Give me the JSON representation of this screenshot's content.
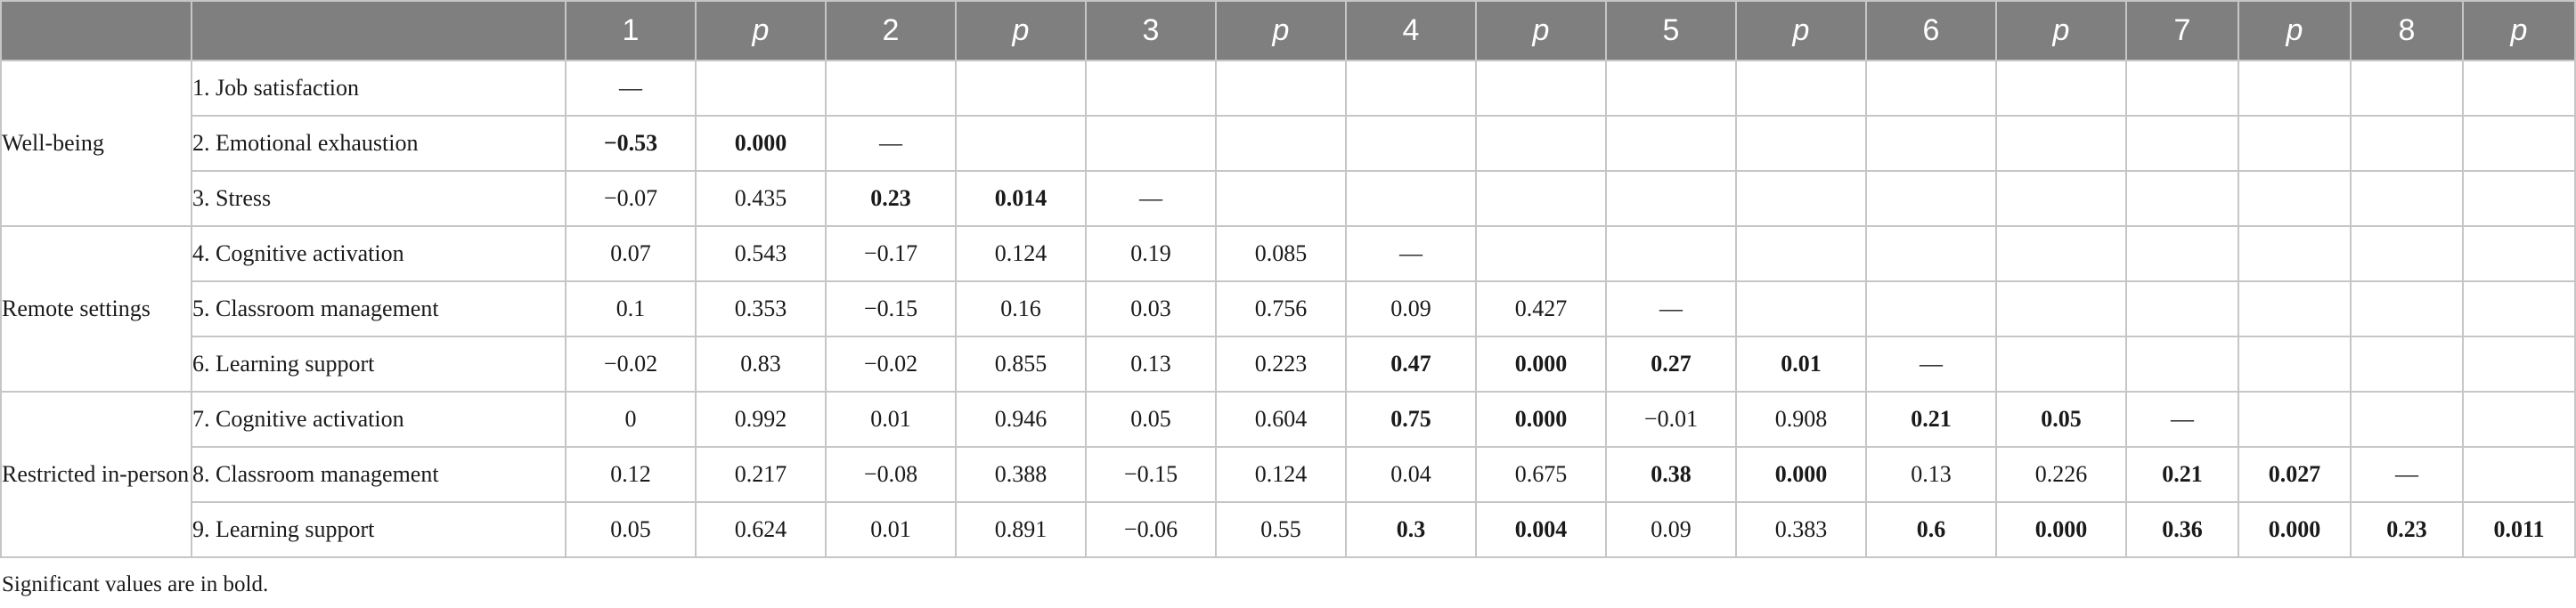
{
  "table": {
    "header": [
      "",
      "",
      "1",
      "p",
      "2",
      "p",
      "3",
      "p",
      "4",
      "p",
      "5",
      "p",
      "6",
      "p",
      "7",
      "p",
      "8",
      "p"
    ],
    "groups": [
      {
        "label": "Well-being",
        "rowspan": 3
      },
      {
        "label": "Remote settings",
        "rowspan": 3
      },
      {
        "label": "Restricted in-person settings",
        "rowspan": 3
      }
    ],
    "rows": [
      {
        "group": 0,
        "label": "1.  Job satisfaction",
        "cells": [
          {
            "v": "—"
          },
          {
            "v": ""
          },
          {
            "v": ""
          },
          {
            "v": ""
          },
          {
            "v": ""
          },
          {
            "v": ""
          },
          {
            "v": ""
          },
          {
            "v": ""
          },
          {
            "v": ""
          },
          {
            "v": ""
          },
          {
            "v": ""
          },
          {
            "v": ""
          },
          {
            "v": ""
          },
          {
            "v": ""
          },
          {
            "v": ""
          },
          {
            "v": ""
          }
        ]
      },
      {
        "group": 0,
        "label": "2.  Emotional exhaustion",
        "cells": [
          {
            "v": "−0.53",
            "b": true
          },
          {
            "v": "0.000",
            "b": true
          },
          {
            "v": "—"
          },
          {
            "v": ""
          },
          {
            "v": ""
          },
          {
            "v": ""
          },
          {
            "v": ""
          },
          {
            "v": ""
          },
          {
            "v": ""
          },
          {
            "v": ""
          },
          {
            "v": ""
          },
          {
            "v": ""
          },
          {
            "v": ""
          },
          {
            "v": ""
          },
          {
            "v": ""
          },
          {
            "v": ""
          }
        ]
      },
      {
        "group": 0,
        "label": "3.  Stress",
        "cells": [
          {
            "v": "−0.07"
          },
          {
            "v": "0.435"
          },
          {
            "v": "0.23",
            "b": true
          },
          {
            "v": "0.014",
            "b": true
          },
          {
            "v": "—"
          },
          {
            "v": ""
          },
          {
            "v": ""
          },
          {
            "v": ""
          },
          {
            "v": ""
          },
          {
            "v": ""
          },
          {
            "v": ""
          },
          {
            "v": ""
          },
          {
            "v": ""
          },
          {
            "v": ""
          },
          {
            "v": ""
          },
          {
            "v": ""
          }
        ]
      },
      {
        "group": 1,
        "label": "4.  Cognitive activation",
        "cells": [
          {
            "v": "0.07"
          },
          {
            "v": "0.543"
          },
          {
            "v": "−0.17"
          },
          {
            "v": "0.124"
          },
          {
            "v": "0.19"
          },
          {
            "v": "0.085"
          },
          {
            "v": "—"
          },
          {
            "v": ""
          },
          {
            "v": ""
          },
          {
            "v": ""
          },
          {
            "v": ""
          },
          {
            "v": ""
          },
          {
            "v": ""
          },
          {
            "v": ""
          },
          {
            "v": ""
          },
          {
            "v": ""
          }
        ]
      },
      {
        "group": 1,
        "label": "5.  Classroom management",
        "cells": [
          {
            "v": "0.1"
          },
          {
            "v": "0.353"
          },
          {
            "v": "−0.15"
          },
          {
            "v": "0.16"
          },
          {
            "v": "0.03"
          },
          {
            "v": "0.756"
          },
          {
            "v": "0.09"
          },
          {
            "v": "0.427"
          },
          {
            "v": "—"
          },
          {
            "v": ""
          },
          {
            "v": ""
          },
          {
            "v": ""
          },
          {
            "v": ""
          },
          {
            "v": ""
          },
          {
            "v": ""
          },
          {
            "v": ""
          }
        ]
      },
      {
        "group": 1,
        "label": "6.  Learning support",
        "cells": [
          {
            "v": "−0.02"
          },
          {
            "v": "0.83"
          },
          {
            "v": "−0.02"
          },
          {
            "v": "0.855"
          },
          {
            "v": "0.13"
          },
          {
            "v": "0.223"
          },
          {
            "v": "0.47",
            "b": true
          },
          {
            "v": "0.000",
            "b": true
          },
          {
            "v": "0.27",
            "b": true
          },
          {
            "v": "0.01",
            "b": true
          },
          {
            "v": "—"
          },
          {
            "v": ""
          },
          {
            "v": ""
          },
          {
            "v": ""
          },
          {
            "v": ""
          },
          {
            "v": ""
          }
        ]
      },
      {
        "group": 2,
        "label": "7.  Cognitive activation",
        "cells": [
          {
            "v": "0"
          },
          {
            "v": "0.992"
          },
          {
            "v": "0.01"
          },
          {
            "v": "0.946"
          },
          {
            "v": "0.05"
          },
          {
            "v": "0.604"
          },
          {
            "v": "0.75",
            "b": true
          },
          {
            "v": "0.000",
            "b": true
          },
          {
            "v": "−0.01"
          },
          {
            "v": "0.908"
          },
          {
            "v": "0.21",
            "b": true
          },
          {
            "v": "0.05",
            "b": true
          },
          {
            "v": "—"
          },
          {
            "v": ""
          },
          {
            "v": ""
          },
          {
            "v": ""
          }
        ]
      },
      {
        "group": 2,
        "label": "8.  Classroom management",
        "cells": [
          {
            "v": "0.12"
          },
          {
            "v": "0.217"
          },
          {
            "v": "−0.08"
          },
          {
            "v": "0.388"
          },
          {
            "v": "−0.15"
          },
          {
            "v": "0.124"
          },
          {
            "v": "0.04"
          },
          {
            "v": "0.675"
          },
          {
            "v": "0.38",
            "b": true
          },
          {
            "v": "0.000",
            "b": true
          },
          {
            "v": "0.13"
          },
          {
            "v": "0.226"
          },
          {
            "v": "0.21",
            "b": true
          },
          {
            "v": "0.027",
            "b": true
          },
          {
            "v": "—"
          },
          {
            "v": ""
          }
        ]
      },
      {
        "group": 2,
        "label": "9.  Learning support",
        "cells": [
          {
            "v": "0.05"
          },
          {
            "v": "0.624"
          },
          {
            "v": "0.01"
          },
          {
            "v": "0.891"
          },
          {
            "v": "−0.06"
          },
          {
            "v": "0.55"
          },
          {
            "v": "0.3",
            "b": true
          },
          {
            "v": "0.004",
            "b": true
          },
          {
            "v": "0.09"
          },
          {
            "v": "0.383"
          },
          {
            "v": "0.6",
            "b": true
          },
          {
            "v": "0.000",
            "b": true
          },
          {
            "v": "0.36",
            "b": true
          },
          {
            "v": "0.000",
            "b": true
          },
          {
            "v": "0.23",
            "b": true
          },
          {
            "v": "0.011",
            "b": true
          }
        ]
      }
    ]
  },
  "footnote": "Significant values are in bold.",
  "colors": {
    "header_bg": "#7f7f7f",
    "header_text": "#ffffff",
    "grid": "#c6c6c6"
  }
}
